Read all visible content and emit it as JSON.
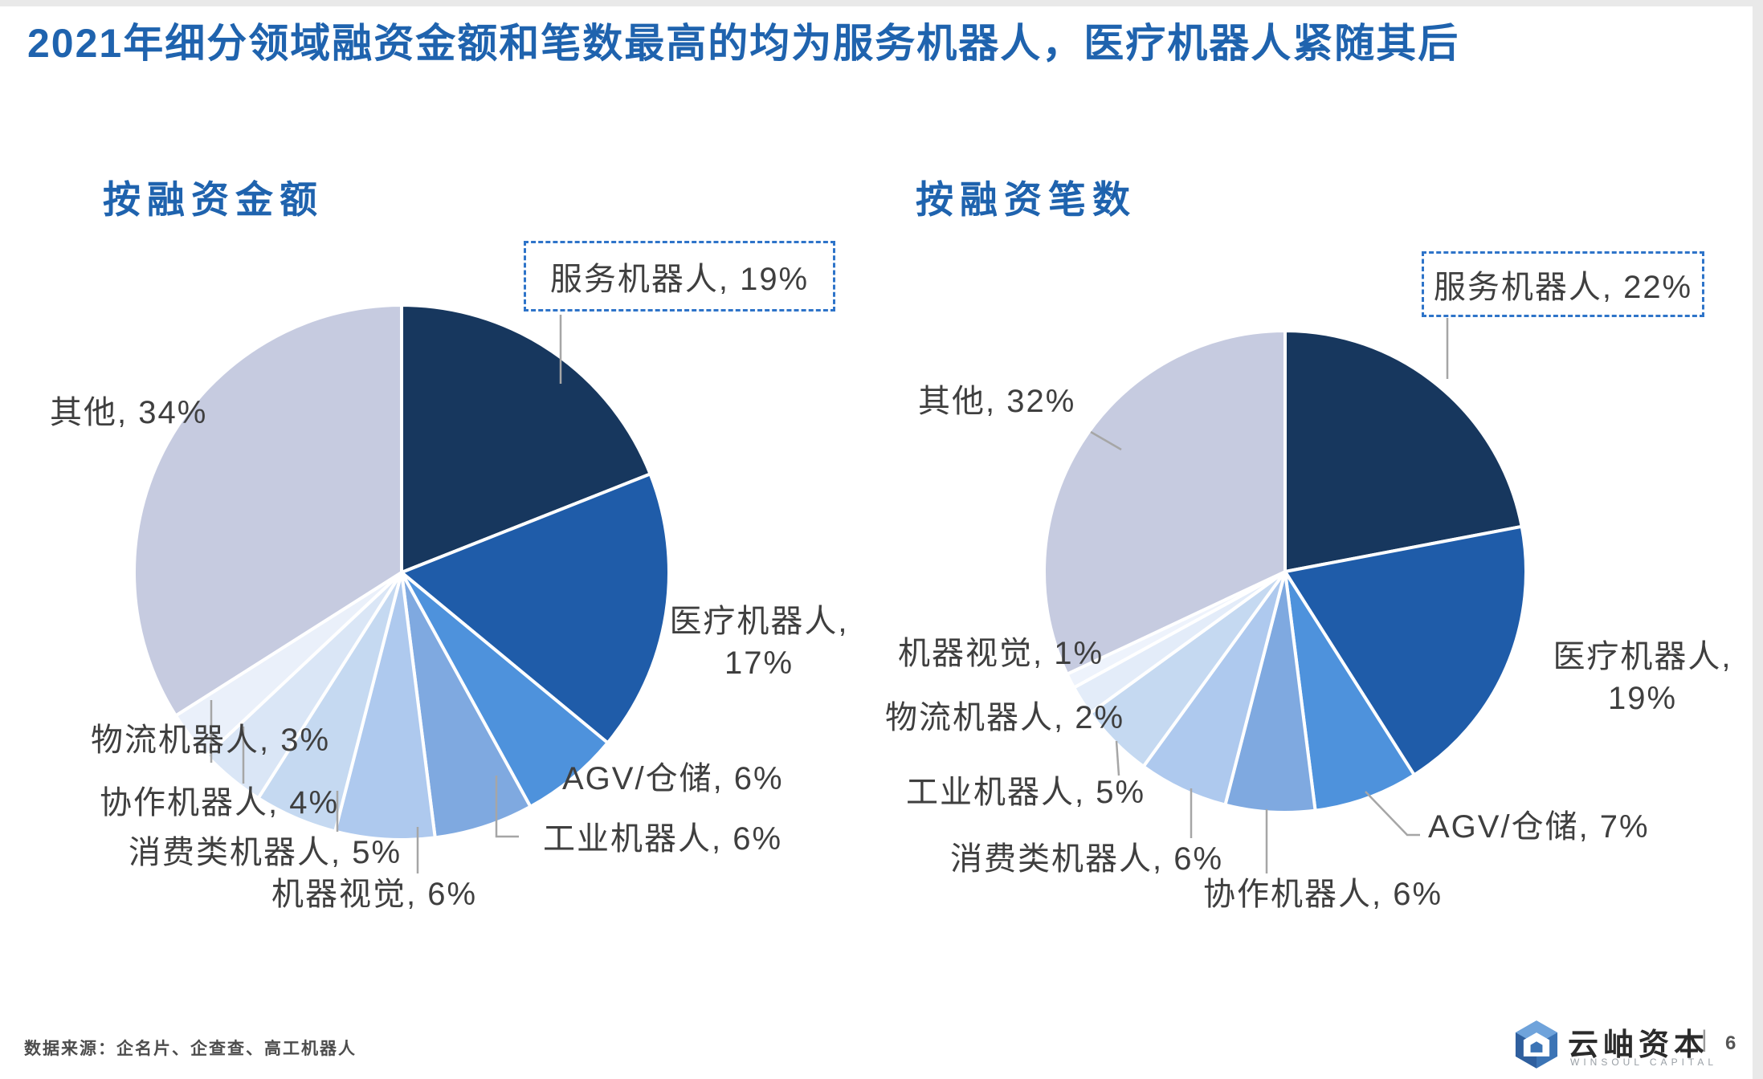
{
  "page": {
    "title": "2021年细分领域融资金额和笔数最高的均为服务机器人，医疗机器人紧随其后",
    "footer": {
      "source": "数据来源：企名片、企查查、高工机器人",
      "separator": "|",
      "page_number": "6"
    },
    "logo": {
      "name_cn": "云岫资本",
      "name_en": "WINSOUL CAPITAL"
    }
  },
  "style": {
    "title_color": "#1F63AE",
    "label_color": "#3F3F3F",
    "callout_border": "#2E74C9",
    "leader_color": "#A6A6A6"
  },
  "chart_data": [
    {
      "type": "pie",
      "title": "按融资金额",
      "categories": [
        "服务机器人",
        "医疗机器人",
        "AGV/仓储",
        "工业机器人",
        "机器视觉",
        "消费类机器人",
        "协作机器人",
        "物流机器人",
        "其他"
      ],
      "ids": [
        "service-robot",
        "medical-robot",
        "agv-warehouse",
        "industrial-robot",
        "machine-vision",
        "consumer-robot",
        "collaborative-robot",
        "logistics-robot",
        "other"
      ],
      "values": [
        19,
        17,
        6,
        6,
        6,
        5,
        4,
        3,
        34
      ],
      "labels": [
        "服务机器人, 19%",
        "医疗机器人, 17%",
        "AGV/仓储, 6%",
        "工业机器人, 6%",
        "机器视觉, 6%",
        "消费类机器人, 5%",
        "协作机器人, 4%",
        "物流机器人, 3%",
        "其他, 34%"
      ],
      "colors": [
        "#17375E",
        "#1F5CA9",
        "#4E92DC",
        "#7FA9E0",
        "#AEC9EE",
        "#C5D9F1",
        "#DAE6F6",
        "#EAF0FA",
        "#C6CBE0"
      ],
      "highlighted_slice": "服务机器人",
      "start_angle_deg": 0,
      "direction": "clockwise",
      "unit": "%"
    },
    {
      "type": "pie",
      "title": "按融资笔数",
      "categories": [
        "服务机器人",
        "医疗机器人",
        "AGV/仓储",
        "协作机器人",
        "消费类机器人",
        "工业机器人",
        "物流机器人",
        "机器视觉",
        "其他"
      ],
      "ids": [
        "service-robot",
        "medical-robot",
        "agv-warehouse",
        "collaborative-robot",
        "consumer-robot",
        "industrial-robot",
        "logistics-robot",
        "machine-vision",
        "other"
      ],
      "values": [
        22,
        19,
        7,
        6,
        6,
        5,
        2,
        1,
        32
      ],
      "labels": [
        "服务机器人, 22%",
        "医疗机器人, 19%",
        "AGV/仓储, 7%",
        "协作机器人, 6%",
        "消费类机器人, 6%",
        "工业机器人, 5%",
        "物流机器人, 2%",
        "机器视觉, 1%",
        "其他, 32%"
      ],
      "colors": [
        "#17375E",
        "#1F5CA9",
        "#4E92DC",
        "#7FA9E0",
        "#AEC9EE",
        "#C5D9F1",
        "#E3ECF9",
        "#EEF3FC",
        "#C6CBE0"
      ],
      "highlighted_slice": "服务机器人",
      "start_angle_deg": 0,
      "direction": "clockwise",
      "unit": "%"
    }
  ]
}
